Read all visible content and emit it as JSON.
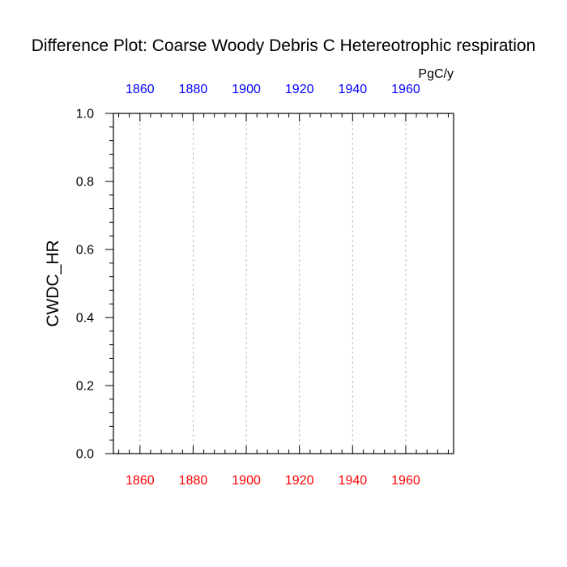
{
  "chart_data": {
    "type": "line",
    "title": "Difference Plot: Coarse Woody Debris C Hetereotrophic respiration",
    "units": "PgC/y",
    "ylabel": "CWDC_HR",
    "xlim": [
      1850,
      1978
    ],
    "ylim": [
      0,
      1
    ],
    "x_ticks": [
      1860,
      1880,
      1900,
      1920,
      1940,
      1960
    ],
    "x_tick_labels": [
      "1860",
      "1880",
      "1900",
      "1920",
      "1940",
      "1960"
    ],
    "y_ticks": [
      0,
      0.2,
      0.4,
      0.6,
      0.8,
      1
    ],
    "y_tick_labels": [
      "0.0",
      "0.2",
      "0.4",
      "0.6",
      "0.8",
      "1.0"
    ],
    "bottom_axis_color": "#ff0000",
    "top_axis_color": "#0000ff",
    "grid": "vertical dashed",
    "series": []
  }
}
